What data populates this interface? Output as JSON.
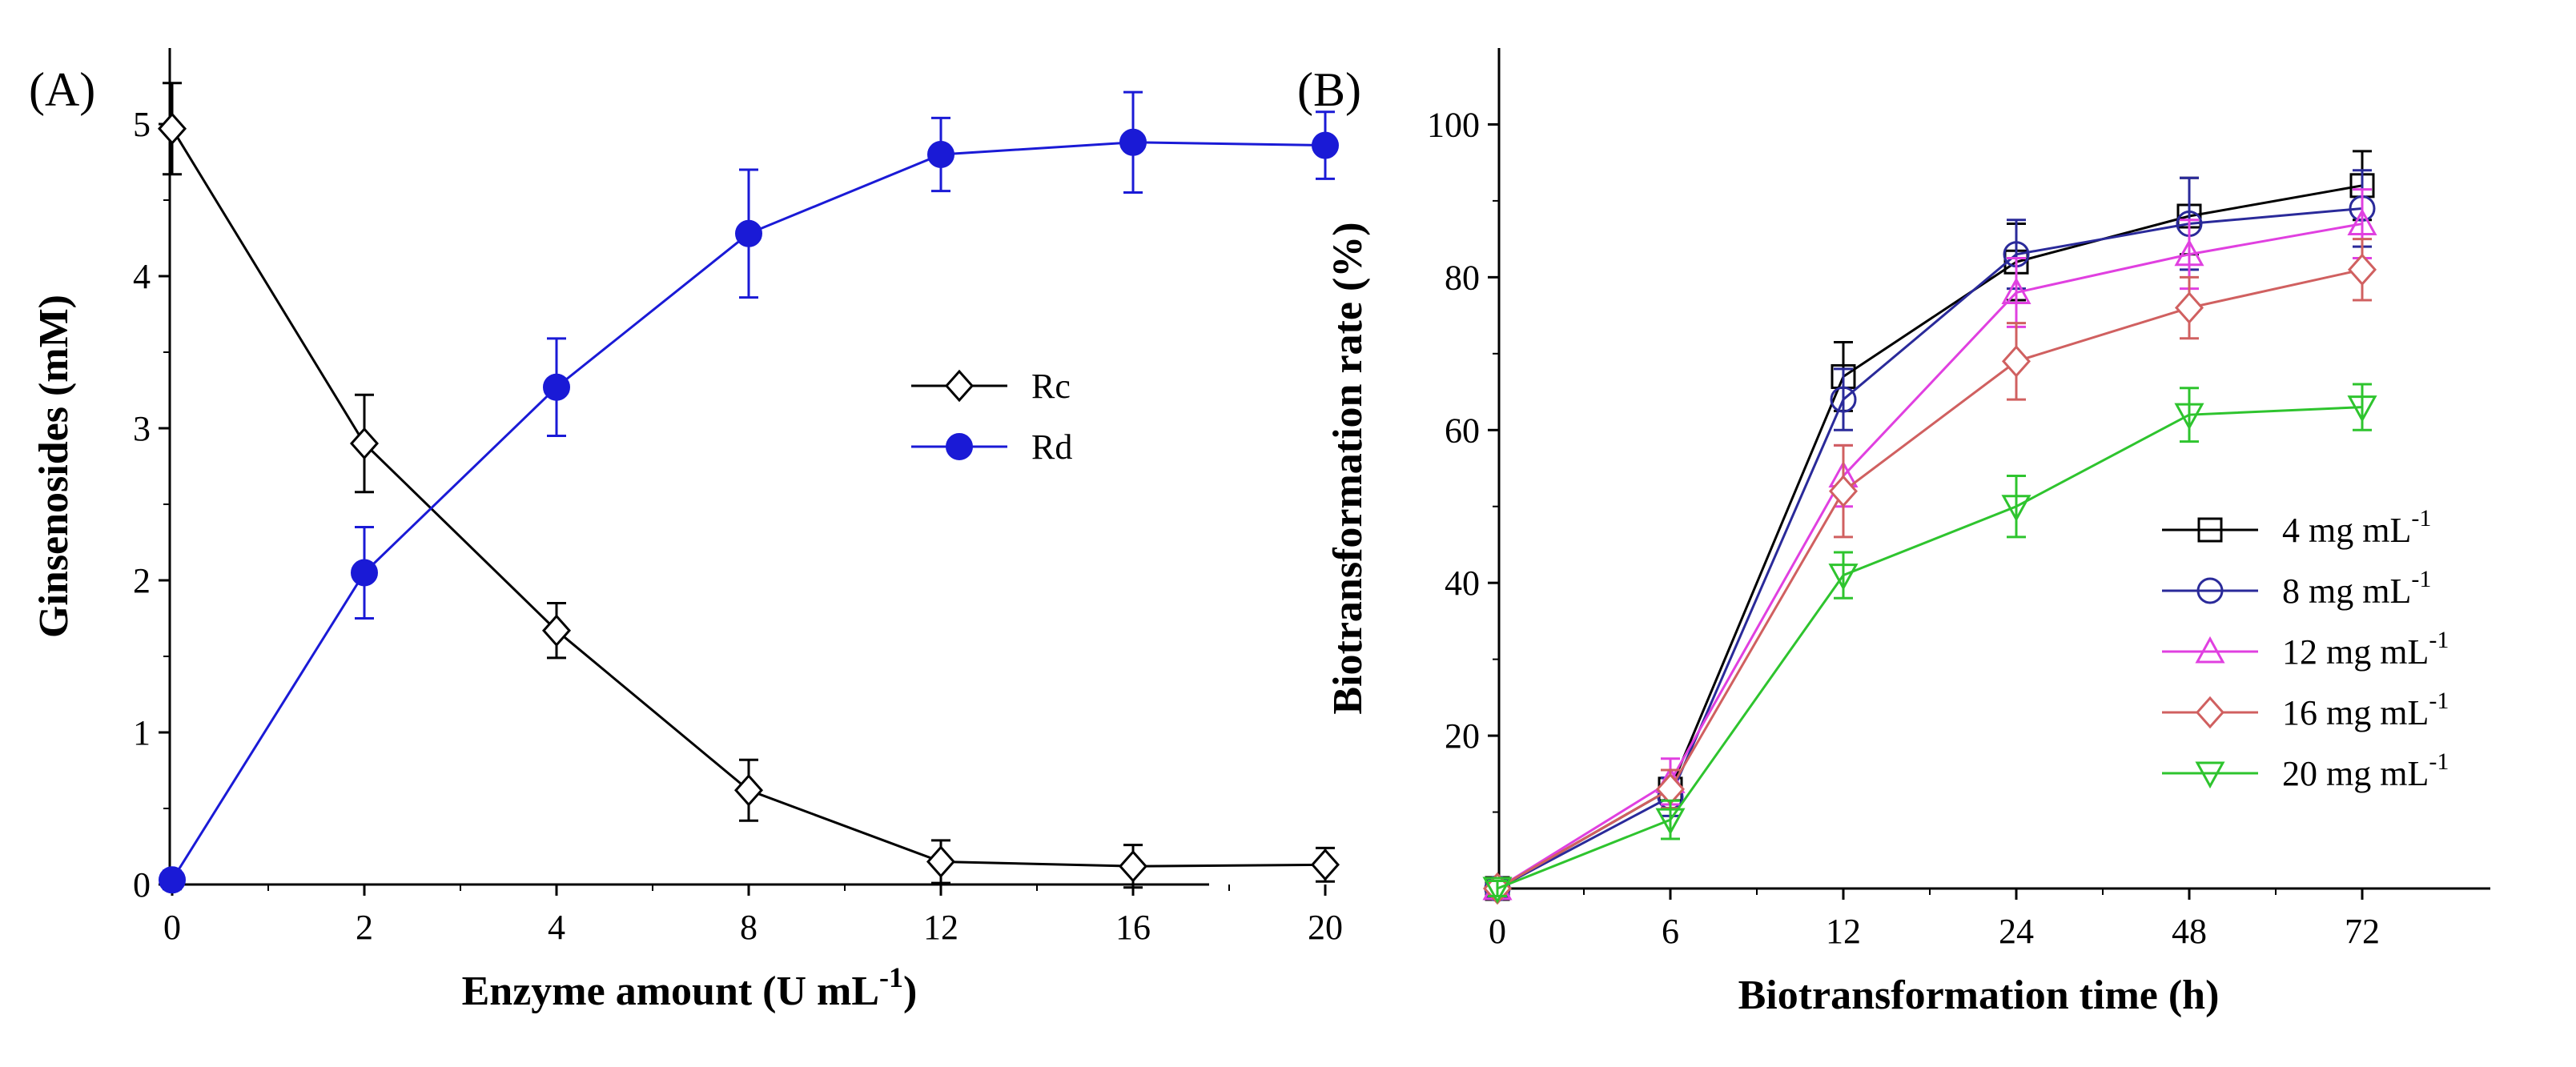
{
  "chart_data": [
    {
      "type": "line",
      "panel_label": "(A)",
      "title": "",
      "xlabel": "Enzyme amount (U mL",
      "xlabel_sup": "-1",
      "xlabel_end": ")",
      "ylabel": "Ginsenosides (mM)",
      "categories": [
        "0",
        "2",
        "4",
        "8",
        "12",
        "16",
        "20"
      ],
      "ylim": [
        0,
        5.5
      ],
      "yticks": [
        0,
        1,
        2,
        3,
        4,
        5
      ],
      "legend_position": "center-right",
      "series": [
        {
          "name": "Rc",
          "color": "#000000",
          "marker": "diamond-open",
          "values": [
            4.97,
            2.9,
            1.67,
            0.62,
            0.15,
            0.12,
            0.13
          ],
          "errors": [
            0.3,
            0.32,
            0.18,
            0.2,
            0.14,
            0.14,
            0.11
          ]
        },
        {
          "name": "Rd",
          "color": "#1a1ad6",
          "marker": "circle-filled",
          "values": [
            0.03,
            2.05,
            3.27,
            4.28,
            4.8,
            4.88,
            4.86
          ],
          "errors": [
            0.06,
            0.3,
            0.32,
            0.42,
            0.24,
            0.33,
            0.22
          ]
        }
      ]
    },
    {
      "type": "line",
      "panel_label": "(B)",
      "title": "",
      "xlabel": "Biotransformation time (h)",
      "ylabel": "Biotransformation rate (%)",
      "categories": [
        "0",
        "6",
        "12",
        "24",
        "48",
        "72"
      ],
      "ylim": [
        0,
        110
      ],
      "yticks": [
        20,
        40,
        60,
        80,
        100
      ],
      "legend_position": "bottom-right",
      "series": [
        {
          "name": "4 mg mL",
          "name_sup": "-1",
          "color": "#000000",
          "marker": "square-open",
          "values": [
            0,
            13,
            67,
            82,
            88,
            92
          ],
          "errors": [
            1,
            2.5,
            4.5,
            5,
            5,
            4.5
          ]
        },
        {
          "name": "8 mg mL",
          "name_sup": "-1",
          "color": "#2a2a9a",
          "marker": "circle-open",
          "values": [
            0,
            12,
            64,
            83,
            87,
            89
          ],
          "errors": [
            1,
            2.5,
            4,
            4.5,
            6,
            5
          ]
        },
        {
          "name": "12 mg mL",
          "name_sup": "-1",
          "color": "#e040e0",
          "marker": "triangle-up-open",
          "values": [
            0,
            14,
            54,
            78,
            83,
            87
          ],
          "errors": [
            1,
            3,
            4,
            4.5,
            4.5,
            4.5
          ]
        },
        {
          "name": "16 mg mL",
          "name_sup": "-1",
          "color": "#d06060",
          "marker": "diamond-open",
          "values": [
            0,
            13,
            52,
            69,
            76,
            81
          ],
          "errors": [
            1,
            2.5,
            6,
            5,
            4,
            4
          ]
        },
        {
          "name": "20 mg mL",
          "name_sup": "-1",
          "color": "#2ec42e",
          "marker": "triangle-down-open",
          "values": [
            0,
            9,
            41,
            50,
            62,
            63
          ],
          "errors": [
            1,
            2.5,
            3,
            4,
            3.5,
            3
          ]
        }
      ]
    }
  ]
}
